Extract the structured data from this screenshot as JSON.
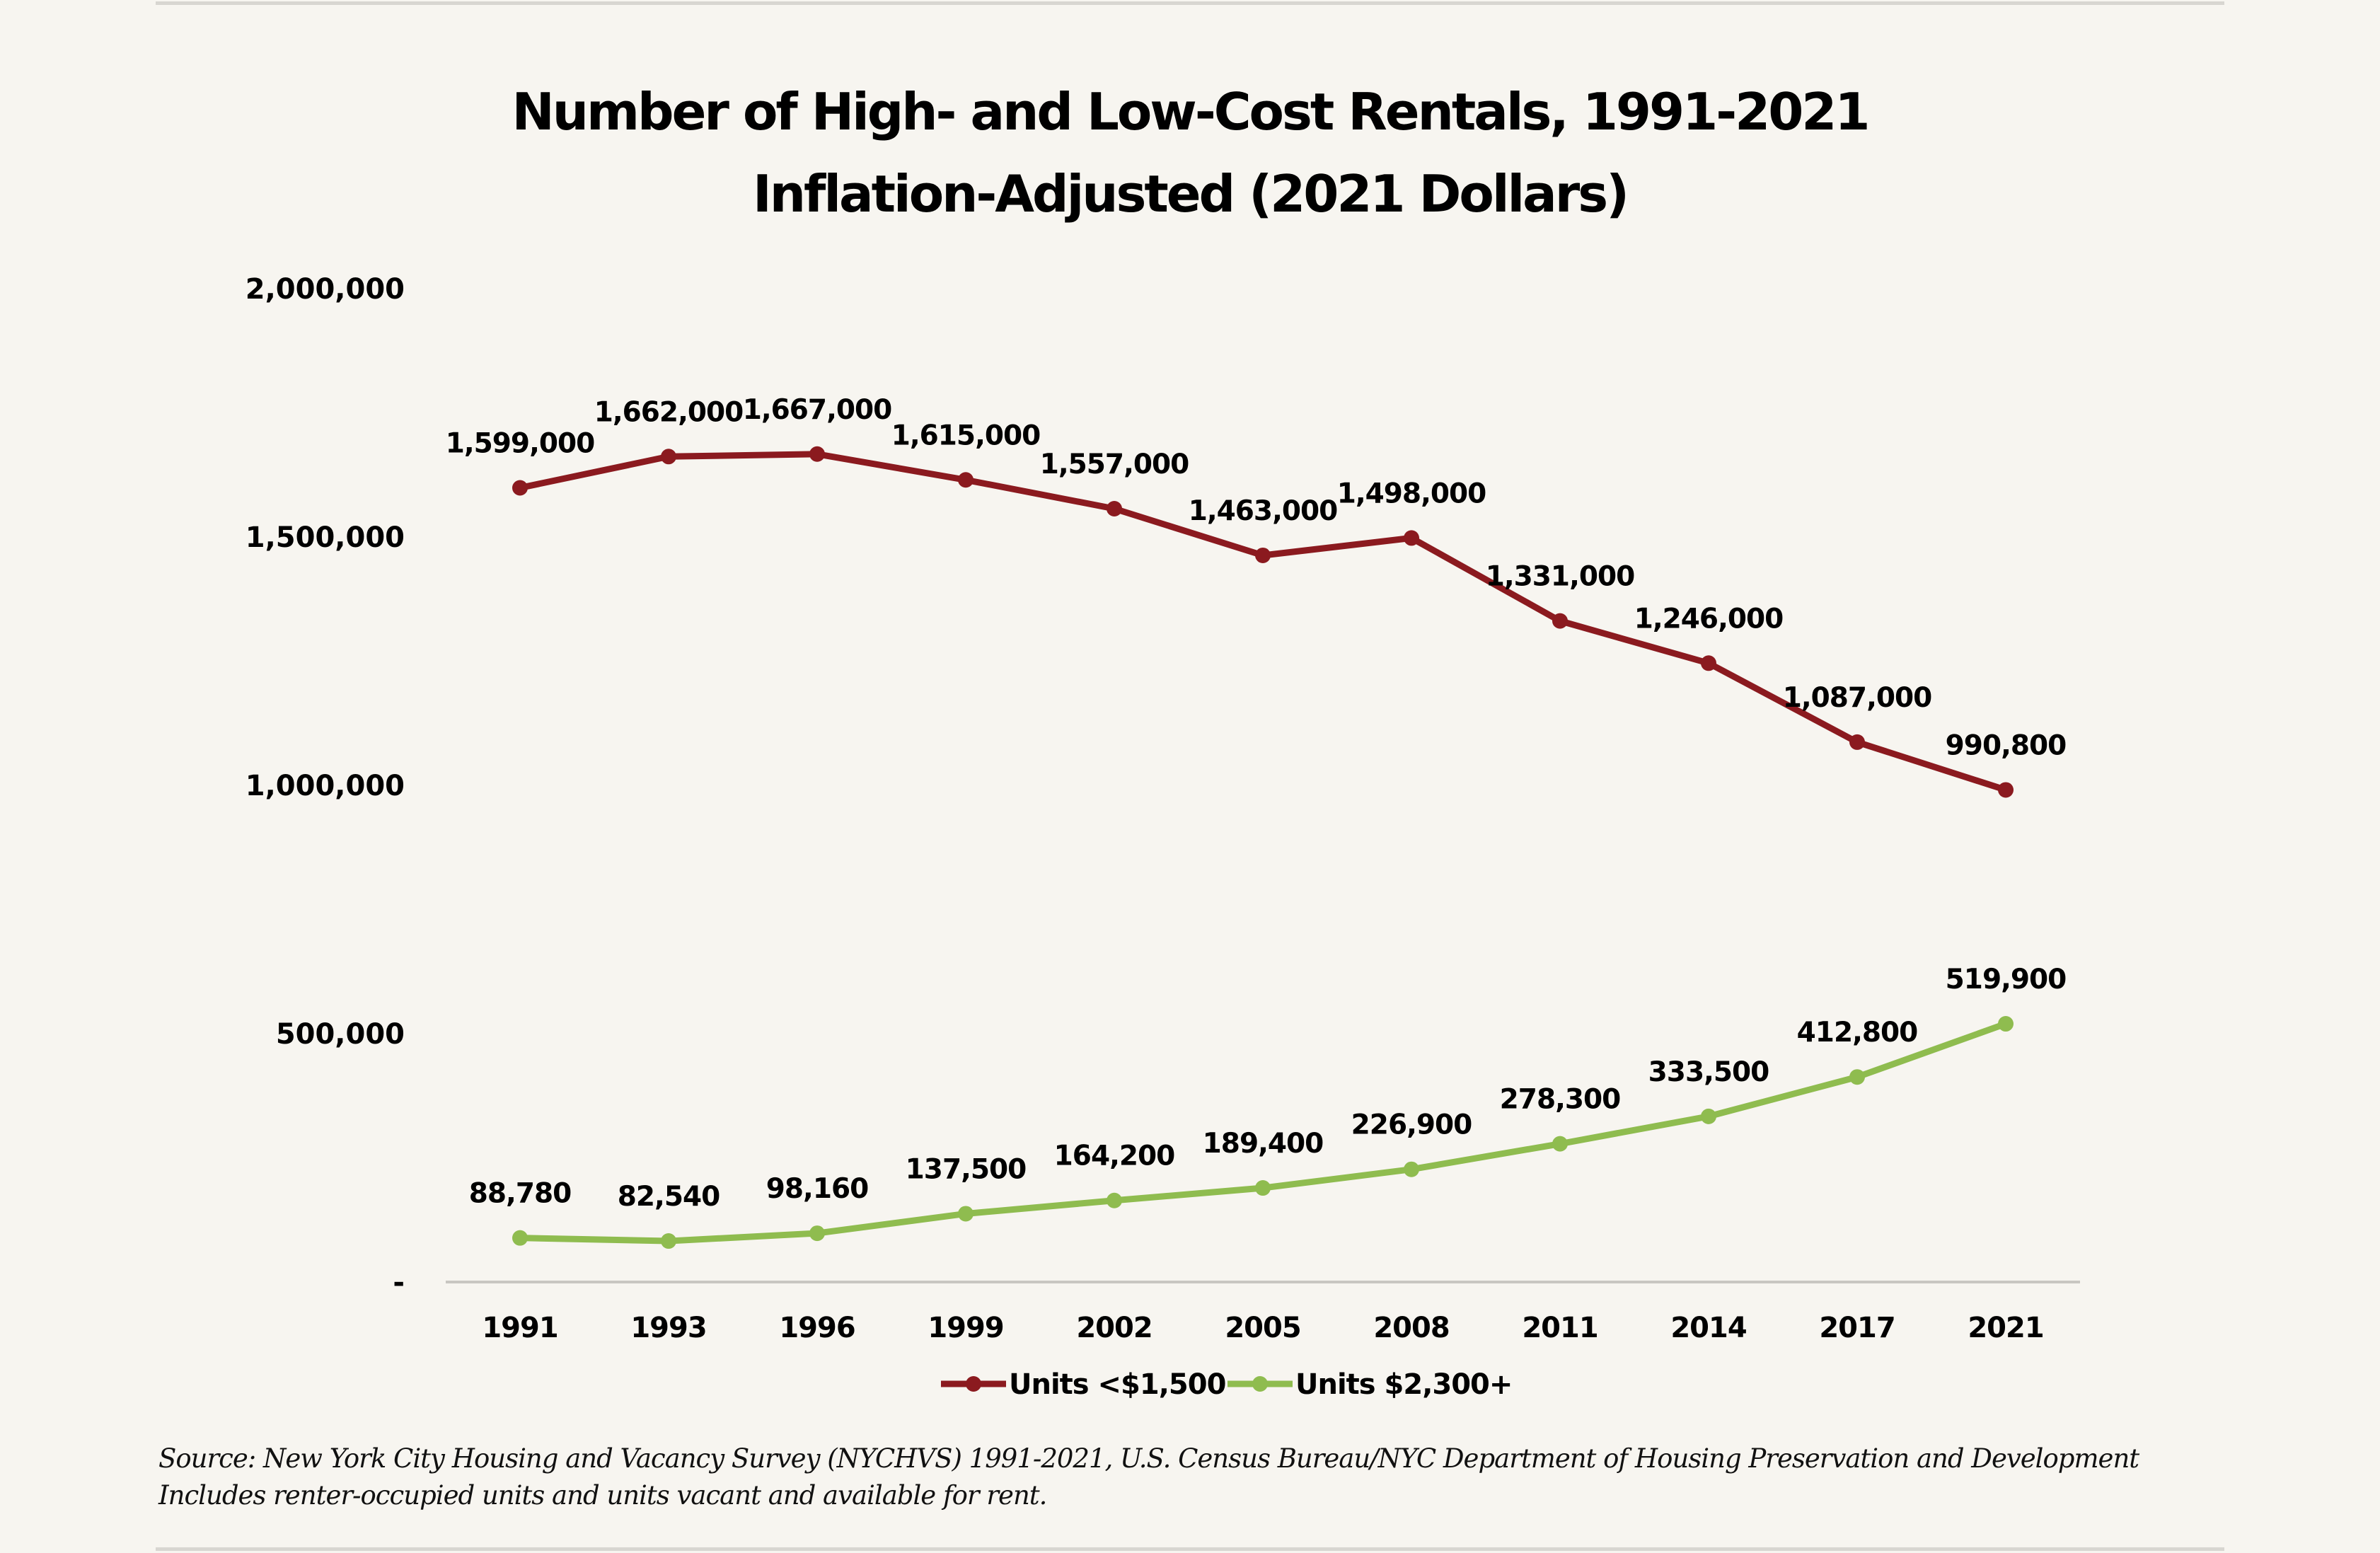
{
  "page": {
    "source_line1": "Source: New York City Housing and Vacancy Survey (NYCHVS) 1991-2021, U.S. Census Bureau/NYC Department of Housing Preservation and Development",
    "source_line2": "Includes renter-occupied units and units vacant and available for rent."
  },
  "chart_data": {
    "type": "line",
    "title": "Number of High- and Low-Cost Rentals, 1991-2021",
    "subtitle": "Inflation-Adjusted (2021 Dollars)",
    "xlabel": "",
    "ylabel": "",
    "categories": [
      "1991",
      "1993",
      "1996",
      "1999",
      "2002",
      "2005",
      "2008",
      "2011",
      "2014",
      "2017",
      "2021"
    ],
    "ylim": [
      0,
      2000000
    ],
    "yticks": [
      0,
      500000,
      1000000,
      1500000,
      2000000
    ],
    "ytick_labels": [
      "-",
      "500,000",
      "1,000,000",
      "1,500,000",
      "2,000,000"
    ],
    "grid": false,
    "legend_position": "bottom",
    "series": [
      {
        "name": "Units <$1,500",
        "color": "#8b1a1f",
        "values": [
          1599000,
          1662000,
          1667000,
          1615000,
          1557000,
          1463000,
          1498000,
          1331000,
          1246000,
          1087000,
          990800
        ],
        "labels": [
          "1,599,000",
          "1,662,000",
          "1,667,000",
          "1,615,000",
          "1,557,000",
          "1,463,000",
          "1,498,000",
          "1,331,000",
          "1,246,000",
          "1,087,000",
          "990,800"
        ]
      },
      {
        "name": "Units $2,300+",
        "color": "#8fbc4f",
        "values": [
          88780,
          82540,
          98160,
          137500,
          164200,
          189400,
          226900,
          278300,
          333500,
          412800,
          519900
        ],
        "labels": [
          "88,780",
          "82,540",
          "98,160",
          "137,500",
          "164,200",
          "189,400",
          "226,900",
          "278,300",
          "333,500",
          "412,800",
          "519,900"
        ]
      }
    ]
  }
}
